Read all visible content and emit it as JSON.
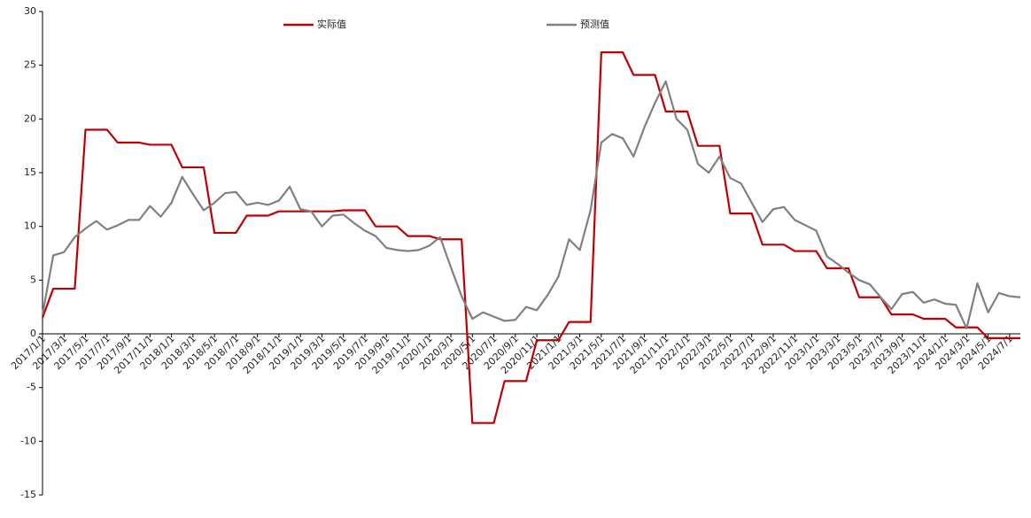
{
  "chart_data": {
    "type": "line",
    "categories": [
      "2017/1/1",
      null,
      "2017/3/1",
      null,
      "2017/5/1",
      null,
      "2017/7/1",
      null,
      "2017/9/1",
      null,
      "2017/11/1",
      null,
      "2018/1/1",
      null,
      "2018/3/1",
      null,
      "2018/5/1",
      null,
      "2018/7/1",
      null,
      "2018/9/1",
      null,
      "2018/11/1",
      null,
      "2019/1/1",
      null,
      "2019/3/1",
      null,
      "2019/5/1",
      null,
      "2019/7/1",
      null,
      "2019/9/1",
      null,
      "2019/11/1",
      null,
      "2020/1/1",
      null,
      "2020/3/1",
      null,
      "2020/5/1",
      null,
      "2020/7/1",
      null,
      "2020/9/1",
      null,
      "2020/11/1",
      null,
      "2021/1/1",
      null,
      "2021/3/1",
      null,
      "2021/5/1",
      null,
      "2021/7/1",
      null,
      "2021/9/1",
      null,
      "2021/11/1",
      null,
      "2022/1/1",
      null,
      "2022/3/1",
      null,
      "2022/5/1",
      null,
      "2022/7/1",
      null,
      "2022/9/1",
      null,
      "2022/11/1",
      null,
      "2023/1/1",
      null,
      "2023/3/1",
      null,
      "2023/5/1",
      null,
      "2023/7/1",
      null,
      "2023/9/1",
      null,
      "2023/11/1",
      null,
      "2024/1/1",
      null,
      "2024/3/1",
      null,
      "2024/5/1",
      null,
      "2024/7/1",
      null
    ],
    "series": [
      {
        "name": "实际值",
        "color": "#c00000",
        "values": [
          1.5,
          4.2,
          4.2,
          4.2,
          19,
          19,
          19,
          17.8,
          17.8,
          17.8,
          17.6,
          17.6,
          17.6,
          15.5,
          15.5,
          15.5,
          9.4,
          9.4,
          9.4,
          11,
          11,
          11,
          11.4,
          11.4,
          11.4,
          11.4,
          11.4,
          11.4,
          11.5,
          11.5,
          11.5,
          10,
          10,
          10,
          9.1,
          9.1,
          9.1,
          8.8,
          8.8,
          8.8,
          -8.3,
          -8.3,
          -8.3,
          -4.4,
          -4.4,
          -4.4,
          -0.6,
          -0.6,
          -0.6,
          1.1,
          1.1,
          1.1,
          26.2,
          26.2,
          26.2,
          24.1,
          24.1,
          24.1,
          20.7,
          20.7,
          20.7,
          17.5,
          17.5,
          17.5,
          11.2,
          11.2,
          11.2,
          8.3,
          8.3,
          8.3,
          7.7,
          7.7,
          7.7,
          6.1,
          6.1,
          6.1,
          3.4,
          3.4,
          3.4,
          1.8,
          1.8,
          1.8,
          1.4,
          1.4,
          1.4,
          0.6,
          0.6,
          0.6,
          -0.4,
          -0.4,
          -0.4,
          -0.4
        ]
      },
      {
        "name": "预测值",
        "color": "#808080",
        "values": [
          1.8,
          7.3,
          7.6,
          9,
          9.8,
          10.5,
          9.7,
          10.1,
          10.6,
          10.6,
          11.9,
          10.9,
          12.2,
          14.6,
          13,
          11.5,
          12.2,
          13.1,
          13.2,
          12,
          12.2,
          12,
          12.4,
          13.7,
          11.6,
          11.4,
          10,
          11,
          11.1,
          10.3,
          9.6,
          9.1,
          8,
          7.8,
          7.7,
          7.8,
          8.2,
          9,
          6.2,
          3.5,
          1.4,
          2,
          1.6,
          1.2,
          1.3,
          2.5,
          2.2,
          3.6,
          5.3,
          8.8,
          7.8,
          11.5,
          17.8,
          18.6,
          18.2,
          16.5,
          19.2,
          21.5,
          23.5,
          20,
          19,
          15.8,
          15,
          16.5,
          14.5,
          14,
          12.2,
          10.4,
          11.6,
          11.8,
          10.6,
          10.1,
          9.6,
          7.2,
          6.5,
          5.7,
          5,
          4.6,
          3.4,
          2.3,
          3.7,
          3.9,
          2.9,
          3.2,
          2.8,
          2.7,
          0.5,
          4.7,
          2,
          3.8,
          3.5,
          3.4
        ]
      }
    ],
    "ylim": [
      -15,
      30
    ],
    "yticks": [
      -15,
      -10,
      -5,
      0,
      5,
      10,
      15,
      20,
      25,
      30
    ],
    "grid": false,
    "legend": "top"
  }
}
